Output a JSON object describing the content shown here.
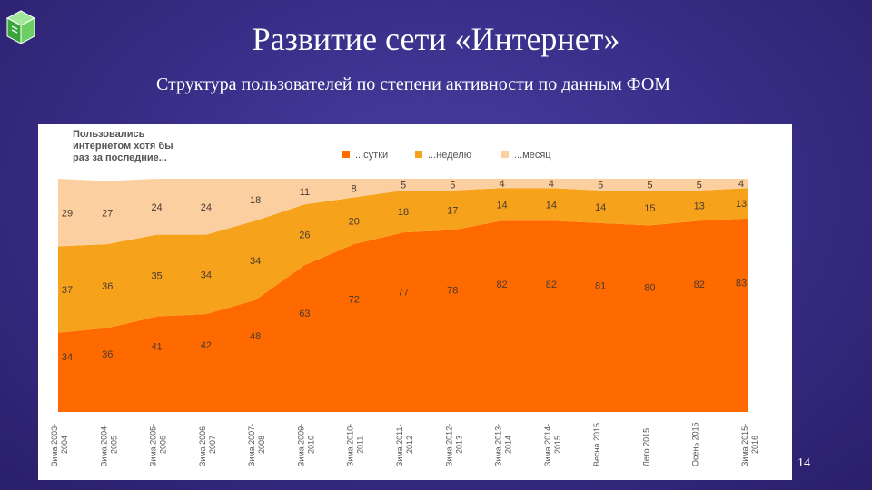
{
  "slide": {
    "title": "Развитие сети «Интернет»",
    "subtitle": "Структура пользователей по степени активности по данным ФОМ",
    "page_number": "14"
  },
  "icons": {
    "logo": "green-cube-logo-icon"
  },
  "colors": {
    "background": "#3a2f8a",
    "daily": "#ff6a00",
    "weekly": "#f7a21b",
    "monthly": "#fbcfa0",
    "text": "#ffffff"
  },
  "chart_data": {
    "type": "area",
    "stacked": true,
    "legend_title": [
      "Пользовались",
      "интернетом хотя бы",
      "раз за последние..."
    ],
    "legend_position": "top",
    "categories": [
      "Зима 2003-2004",
      "Зима 2004-2005",
      "Зима 2005-2006",
      "Зима 2006-2007",
      "Зима 2007-2008",
      "Зима 2009-2010",
      "Зима 2010-2011",
      "Зима 2011-2012",
      "Зима 2012-2013",
      "Зима 2013-2014",
      "Зима 2014-2015",
      "Весна 2015",
      "Лето 2015",
      "Осень 2015",
      "Зима 2015-2016"
    ],
    "series": [
      {
        "name": "...сутки",
        "color": "#ff6a00",
        "values": [
          34,
          36,
          41,
          42,
          48,
          63,
          72,
          77,
          78,
          82,
          82,
          81,
          80,
          82,
          83
        ]
      },
      {
        "name": "...неделю",
        "color": "#f7a21b",
        "values": [
          37,
          36,
          35,
          34,
          34,
          26,
          20,
          18,
          17,
          14,
          14,
          14,
          15,
          13,
          13
        ]
      },
      {
        "name": "...месяц",
        "color": "#fbcfa0",
        "values": [
          29,
          27,
          24,
          24,
          18,
          11,
          8,
          5,
          5,
          4,
          4,
          5,
          5,
          5,
          4
        ]
      }
    ],
    "ylim": [
      0,
      100
    ],
    "grid": false,
    "xlabel": "",
    "ylabel": ""
  }
}
